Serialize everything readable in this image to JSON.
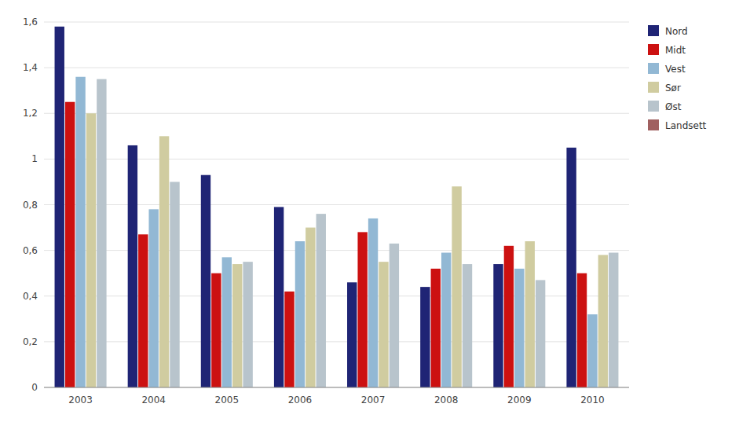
{
  "chart_data": {
    "type": "bar",
    "categories": [
      "2003",
      "2004",
      "2005",
      "2006",
      "2007",
      "2008",
      "2009",
      "2010"
    ],
    "series": [
      {
        "name": "Nord",
        "color": "#1f2475",
        "values": [
          1.58,
          1.06,
          0.93,
          0.79,
          0.46,
          0.44,
          0.54,
          1.05
        ]
      },
      {
        "name": "Midt",
        "color": "#cc1111",
        "values": [
          1.25,
          0.67,
          0.5,
          0.42,
          0.68,
          0.52,
          0.62,
          0.5
        ]
      },
      {
        "name": "Vest",
        "color": "#92b8d4",
        "values": [
          1.36,
          0.78,
          0.57,
          0.64,
          0.74,
          0.59,
          0.52,
          0.32
        ]
      },
      {
        "name": "Sør",
        "color": "#d0cca0",
        "values": [
          1.2,
          1.1,
          0.54,
          0.7,
          0.55,
          0.88,
          0.64,
          0.58
        ]
      },
      {
        "name": "Øst",
        "color": "#b8c4cc",
        "values": [
          1.35,
          0.9,
          0.55,
          0.76,
          0.63,
          0.54,
          0.47,
          0.59
        ]
      },
      {
        "name": "Landsett",
        "color": "#a06060",
        "values": [
          null,
          null,
          null,
          null,
          null,
          null,
          null,
          null
        ]
      }
    ],
    "ylim": [
      0,
      1.6
    ],
    "yticks": [
      0,
      {
        "value": 0.2,
        "label": "0,2"
      },
      {
        "value": 0.4,
        "label": "0,4"
      },
      {
        "value": 0.6,
        "label": "0,6"
      },
      {
        "value": 0.8,
        "label": "0,8"
      },
      1,
      {
        "value": 1.2,
        "label": "1,2"
      },
      {
        "value": 1.4,
        "label": "1,4"
      },
      {
        "value": 1.6,
        "label": "1,6"
      }
    ],
    "grid": true,
    "legend": "right"
  }
}
